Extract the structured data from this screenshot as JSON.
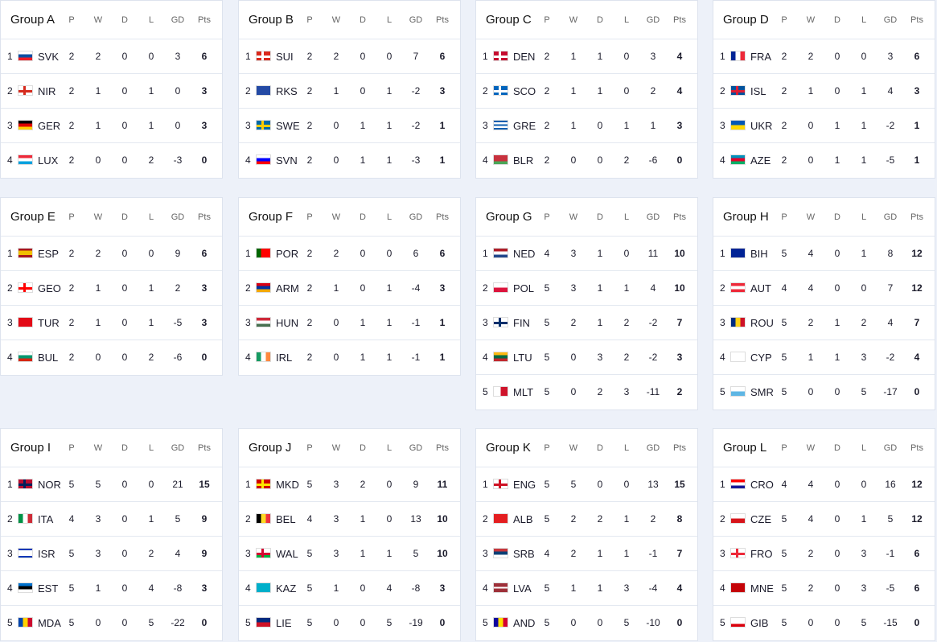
{
  "columns": [
    "P",
    "W",
    "D",
    "L",
    "GD",
    "Pts"
  ],
  "groups": [
    {
      "name": "Group A",
      "rows": [
        [
          "1",
          "SVK",
          2,
          2,
          0,
          0,
          3,
          6,
          {
            "d": "h",
            "c": [
              "#fff",
              "#0b4ea2",
              "#ee1c25"
            ]
          }
        ],
        [
          "2",
          "NIR",
          2,
          1,
          0,
          1,
          0,
          3,
          {
            "d": "h",
            "c": [
              "#fff"
            ],
            "x": "#d52b1e"
          }
        ],
        [
          "3",
          "GER",
          2,
          1,
          0,
          1,
          0,
          3,
          {
            "d": "h",
            "c": [
              "#000",
              "#dd0000",
              "#ffce00"
            ]
          }
        ],
        [
          "4",
          "LUX",
          2,
          0,
          0,
          2,
          -3,
          0,
          {
            "d": "h",
            "c": [
              "#ed2939",
              "#fff",
              "#00a1de"
            ]
          }
        ]
      ]
    },
    {
      "name": "Group B",
      "rows": [
        [
          "1",
          "SUI",
          2,
          2,
          0,
          0,
          7,
          6,
          {
            "d": "h",
            "c": [
              "#da291c"
            ],
            "x": "#fff"
          }
        ],
        [
          "2",
          "RKS",
          2,
          1,
          0,
          1,
          -2,
          3,
          {
            "d": "h",
            "c": [
              "#244aa5"
            ]
          }
        ],
        [
          "3",
          "SWE",
          2,
          0,
          1,
          1,
          -2,
          1,
          {
            "d": "h",
            "c": [
              "#006aa7"
            ],
            "x": "#fecc00"
          }
        ],
        [
          "4",
          "SVN",
          2,
          0,
          1,
          1,
          -3,
          1,
          {
            "d": "h",
            "c": [
              "#fff",
              "#0000ff",
              "#ff0000"
            ]
          }
        ]
      ]
    },
    {
      "name": "Group C",
      "rows": [
        [
          "1",
          "DEN",
          2,
          1,
          1,
          0,
          3,
          4,
          {
            "d": "h",
            "c": [
              "#c60c30"
            ],
            "x": "#fff"
          }
        ],
        [
          "2",
          "SCO",
          2,
          1,
          1,
          0,
          2,
          4,
          {
            "d": "h",
            "c": [
              "#0065bd"
            ],
            "x": "#fff"
          }
        ],
        [
          "3",
          "GRE",
          2,
          1,
          0,
          1,
          1,
          3,
          {
            "d": "h",
            "c": [
              "#0d5eaf",
              "#fff",
              "#0d5eaf",
              "#fff",
              "#0d5eaf"
            ]
          }
        ],
        [
          "4",
          "BLR",
          2,
          0,
          0,
          2,
          -6,
          0,
          {
            "d": "h",
            "c": [
              "#c8313e",
              "#c8313e",
              "#4aa657"
            ]
          }
        ]
      ]
    },
    {
      "name": "Group D",
      "rows": [
        [
          "1",
          "FRA",
          2,
          2,
          0,
          0,
          3,
          6,
          {
            "d": "v",
            "c": [
              "#002395",
              "#fff",
              "#ed2939"
            ]
          }
        ],
        [
          "2",
          "ISL",
          2,
          1,
          0,
          1,
          4,
          3,
          {
            "d": "h",
            "c": [
              "#02529c"
            ],
            "x": "#dc1e35"
          }
        ],
        [
          "3",
          "UKR",
          2,
          0,
          1,
          1,
          -2,
          1,
          {
            "d": "h",
            "c": [
              "#0057b7",
              "#ffd700"
            ]
          }
        ],
        [
          "4",
          "AZE",
          2,
          0,
          1,
          1,
          -5,
          1,
          {
            "d": "h",
            "c": [
              "#0092bc",
              "#e4002b",
              "#00af66"
            ]
          }
        ]
      ]
    },
    {
      "name": "Group E",
      "rows": [
        [
          "1",
          "ESP",
          2,
          2,
          0,
          0,
          9,
          6,
          {
            "d": "h",
            "c": [
              "#aa151b",
              "#f1bf00",
              "#f1bf00",
              "#aa151b"
            ]
          }
        ],
        [
          "2",
          "GEO",
          2,
          1,
          0,
          1,
          2,
          3,
          {
            "d": "h",
            "c": [
              "#fff"
            ],
            "x": "#ff0000"
          }
        ],
        [
          "3",
          "TUR",
          2,
          1,
          0,
          1,
          -5,
          3,
          {
            "d": "h",
            "c": [
              "#e30a17"
            ]
          }
        ],
        [
          "4",
          "BUL",
          2,
          0,
          0,
          2,
          -6,
          0,
          {
            "d": "h",
            "c": [
              "#fff",
              "#00966e",
              "#d62612"
            ]
          }
        ]
      ]
    },
    {
      "name": "Group F",
      "rows": [
        [
          "1",
          "POR",
          2,
          2,
          0,
          0,
          6,
          6,
          {
            "d": "v",
            "c": [
              "#006600",
              "#ff0000",
              "#ff0000"
            ]
          }
        ],
        [
          "2",
          "ARM",
          2,
          1,
          0,
          1,
          -4,
          3,
          {
            "d": "h",
            "c": [
              "#d90012",
              "#0033a0",
              "#f2a800"
            ]
          }
        ],
        [
          "3",
          "HUN",
          2,
          0,
          1,
          1,
          -1,
          1,
          {
            "d": "h",
            "c": [
              "#ce2939",
              "#fff",
              "#477050"
            ]
          }
        ],
        [
          "4",
          "IRL",
          2,
          0,
          1,
          1,
          -1,
          1,
          {
            "d": "v",
            "c": [
              "#169b62",
              "#fff",
              "#ff883e"
            ]
          }
        ]
      ]
    },
    {
      "name": "Group G",
      "rows": [
        [
          "1",
          "NED",
          4,
          3,
          1,
          0,
          11,
          10,
          {
            "d": "h",
            "c": [
              "#ae1c28",
              "#fff",
              "#21468b"
            ]
          }
        ],
        [
          "2",
          "POL",
          5,
          3,
          1,
          1,
          4,
          10,
          {
            "d": "h",
            "c": [
              "#fff",
              "#dc143c"
            ]
          }
        ],
        [
          "3",
          "FIN",
          5,
          2,
          1,
          2,
          -2,
          7,
          {
            "d": "h",
            "c": [
              "#fff"
            ],
            "x": "#002f6c"
          }
        ],
        [
          "4",
          "LTU",
          5,
          0,
          3,
          2,
          -2,
          3,
          {
            "d": "h",
            "c": [
              "#fdb913",
              "#006a44",
              "#c1272d"
            ]
          }
        ],
        [
          "5",
          "MLT",
          5,
          0,
          2,
          3,
          -11,
          2,
          {
            "d": "v",
            "c": [
              "#fff",
              "#cf142b"
            ]
          }
        ]
      ]
    },
    {
      "name": "Group H",
      "rows": [
        [
          "1",
          "BIH",
          5,
          4,
          0,
          1,
          8,
          12,
          {
            "d": "h",
            "c": [
              "#002395"
            ]
          }
        ],
        [
          "2",
          "AUT",
          4,
          4,
          0,
          0,
          7,
          12,
          {
            "d": "h",
            "c": [
              "#ed2939",
              "#fff",
              "#ed2939"
            ]
          }
        ],
        [
          "3",
          "ROU",
          5,
          2,
          1,
          2,
          4,
          7,
          {
            "d": "v",
            "c": [
              "#002b7f",
              "#fcd116",
              "#ce1126"
            ]
          }
        ],
        [
          "4",
          "CYP",
          5,
          1,
          1,
          3,
          -2,
          4,
          {
            "d": "h",
            "c": [
              "#fff"
            ]
          }
        ],
        [
          "5",
          "SMR",
          5,
          0,
          0,
          5,
          -17,
          0,
          {
            "d": "h",
            "c": [
              "#fff",
              "#5eb6e4"
            ]
          }
        ]
      ]
    },
    {
      "name": "Group I",
      "rows": [
        [
          "1",
          "NOR",
          5,
          5,
          0,
          0,
          21,
          15,
          {
            "d": "h",
            "c": [
              "#ba0c2f"
            ],
            "x": "#00205b"
          }
        ],
        [
          "2",
          "ITA",
          4,
          3,
          0,
          1,
          5,
          9,
          {
            "d": "v",
            "c": [
              "#009246",
              "#fff",
              "#ce2b37"
            ]
          }
        ],
        [
          "3",
          "ISR",
          5,
          3,
          0,
          2,
          4,
          9,
          {
            "d": "h",
            "c": [
              "#0038b8",
              "#fff",
              "#fff",
              "#fff",
              "#0038b8"
            ]
          }
        ],
        [
          "4",
          "EST",
          5,
          1,
          0,
          4,
          -8,
          3,
          {
            "d": "h",
            "c": [
              "#0072ce",
              "#000",
              "#fff"
            ]
          }
        ],
        [
          "5",
          "MDA",
          5,
          0,
          0,
          5,
          -22,
          0,
          {
            "d": "v",
            "c": [
              "#0046ae",
              "#ffd200",
              "#cc092f"
            ]
          }
        ]
      ]
    },
    {
      "name": "Group J",
      "rows": [
        [
          "1",
          "MKD",
          5,
          3,
          2,
          0,
          9,
          11,
          {
            "d": "h",
            "c": [
              "#d20000"
            ],
            "x": "#ffe600"
          }
        ],
        [
          "2",
          "BEL",
          4,
          3,
          1,
          0,
          13,
          10,
          {
            "d": "v",
            "c": [
              "#000",
              "#fdda24",
              "#ef3340"
            ]
          }
        ],
        [
          "3",
          "WAL",
          5,
          3,
          1,
          1,
          5,
          10,
          {
            "d": "h",
            "c": [
              "#fff",
              "#00b140"
            ],
            "x": "#d30731"
          }
        ],
        [
          "4",
          "KAZ",
          5,
          1,
          0,
          4,
          -8,
          3,
          {
            "d": "h",
            "c": [
              "#00afca"
            ]
          }
        ],
        [
          "5",
          "LIE",
          5,
          0,
          0,
          5,
          -19,
          0,
          {
            "d": "h",
            "c": [
              "#002b7f",
              "#ce1126"
            ]
          }
        ]
      ]
    },
    {
      "name": "Group K",
      "rows": [
        [
          "1",
          "ENG",
          5,
          5,
          0,
          0,
          13,
          15,
          {
            "d": "h",
            "c": [
              "#fff"
            ],
            "x": "#ce1124"
          }
        ],
        [
          "2",
          "ALB",
          5,
          2,
          2,
          1,
          2,
          8,
          {
            "d": "h",
            "c": [
              "#e41e20"
            ]
          }
        ],
        [
          "3",
          "SRB",
          4,
          2,
          1,
          1,
          -1,
          7,
          {
            "d": "h",
            "c": [
              "#c6363c",
              "#0c4076",
              "#fff"
            ]
          }
        ],
        [
          "4",
          "LVA",
          5,
          1,
          1,
          3,
          -4,
          4,
          {
            "d": "h",
            "c": [
              "#9e3039",
              "#9e3039",
              "#fff",
              "#9e3039",
              "#9e3039"
            ]
          }
        ],
        [
          "5",
          "AND",
          5,
          0,
          0,
          5,
          -10,
          0,
          {
            "d": "v",
            "c": [
              "#10069f",
              "#fedf00",
              "#d50032"
            ]
          }
        ]
      ]
    },
    {
      "name": "Group L",
      "rows": [
        [
          "1",
          "CRO",
          4,
          4,
          0,
          0,
          16,
          12,
          {
            "d": "h",
            "c": [
              "#ff0000",
              "#fff",
              "#171796"
            ]
          }
        ],
        [
          "2",
          "CZE",
          5,
          4,
          0,
          1,
          5,
          12,
          {
            "d": "h",
            "c": [
              "#fff",
              "#d7141a"
            ]
          }
        ],
        [
          "3",
          "FRO",
          5,
          2,
          0,
          3,
          -1,
          6,
          {
            "d": "h",
            "c": [
              "#fff"
            ],
            "x": "#ed2939"
          }
        ],
        [
          "4",
          "MNE",
          5,
          2,
          0,
          3,
          -5,
          6,
          {
            "d": "h",
            "c": [
              "#c40308"
            ]
          }
        ],
        [
          "5",
          "GIB",
          5,
          0,
          0,
          5,
          -15,
          0,
          {
            "d": "h",
            "c": [
              "#fff",
              "#fff",
              "#da000c"
            ]
          }
        ]
      ]
    }
  ]
}
